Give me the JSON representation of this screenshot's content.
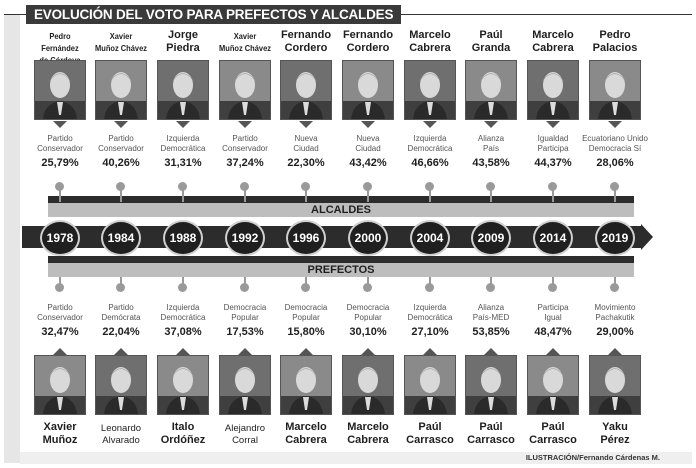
{
  "title": "EVOLUCIÓN DEL VOTO PARA PREFECTOS Y ALCALDES",
  "band_alcaldes": "ALCALDES",
  "band_prefectos": "PREFECTOS",
  "credit": "ILUSTRACIÓN/Fernando Cárdenas M.",
  "colors": {
    "dark": "#2c2c2c",
    "band": "#bdbdbd",
    "connector": "#9a9a9a",
    "title_bg": "#3a3a3a"
  },
  "years": [
    "1978",
    "1984",
    "1988",
    "1992",
    "1996",
    "2000",
    "2004",
    "2009",
    "2014",
    "2019"
  ],
  "alcaldes": [
    {
      "name_1": "Pedro Fernández",
      "name_2": "de Córdova",
      "party_1": "Partido",
      "party_2": "Conservador",
      "pct": "25,79%"
    },
    {
      "name_1": "Xavier",
      "name_2": "Muñoz Chávez",
      "party_1": "Partido",
      "party_2": "Conservador",
      "pct": "40,26%"
    },
    {
      "name_1": "Jorge",
      "name_2": "Piedra",
      "party_1": "Izquierda",
      "party_2": "Democrática",
      "pct": "31,31%"
    },
    {
      "name_1": "Xavier",
      "name_2": "Muñoz Chávez",
      "party_1": "Partido",
      "party_2": "Conservador",
      "pct": "37,24%"
    },
    {
      "name_1": "Fernando",
      "name_2": "Cordero",
      "party_1": "Nueva",
      "party_2": "Ciudad",
      "pct": "22,30%"
    },
    {
      "name_1": "Fernando",
      "name_2": "Cordero",
      "party_1": "Nueva",
      "party_2": "Ciudad",
      "pct": "43,42%"
    },
    {
      "name_1": "Marcelo",
      "name_2": "Cabrera",
      "party_1": "Izquierda",
      "party_2": "Democrática",
      "pct": "46,66%"
    },
    {
      "name_1": "Paúl",
      "name_2": "Granda",
      "party_1": "Alianza",
      "party_2": "País",
      "pct": "43,58%"
    },
    {
      "name_1": "Marcelo",
      "name_2": "Cabrera",
      "party_1": "Igualdad",
      "party_2": "Participa",
      "pct": "44,37%"
    },
    {
      "name_1": "Pedro",
      "name_2": "Palacios",
      "party_1": "Ecuatoriano Unido",
      "party_2": "Democracia Sí",
      "pct": "28,06%"
    }
  ],
  "prefectos": [
    {
      "name_1": "Xavier",
      "name_2": "Muñoz",
      "party_1": "Partido",
      "party_2": "Conservador",
      "pct": "32,47%"
    },
    {
      "name_1": "Leonardo",
      "name_2": "Alvarado",
      "party_1": "Partido",
      "party_2": "Demócrata",
      "pct": "22,04%"
    },
    {
      "name_1": "Italo",
      "name_2": "Ordóñez",
      "party_1": "Izquierda",
      "party_2": "Democrática",
      "pct": "37,08%"
    },
    {
      "name_1": "Alejandro",
      "name_2": "Corral",
      "party_1": "Democracia",
      "party_2": "Popular",
      "pct": "17,53%"
    },
    {
      "name_1": "Marcelo",
      "name_2": "Cabrera",
      "party_1": "Democracia",
      "party_2": "Popular",
      "pct": "15,80%"
    },
    {
      "name_1": "Marcelo",
      "name_2": "Cabrera",
      "party_1": "Democracia",
      "party_2": "Popular",
      "pct": "30,10%"
    },
    {
      "name_1": "Paúl",
      "name_2": "Carrasco",
      "party_1": "Izquierda",
      "party_2": "Democrática",
      "pct": "27,10%"
    },
    {
      "name_1": "Paúl",
      "name_2": "Carrasco",
      "party_1": "Alianza",
      "party_2": "País-MED",
      "pct": "53,85%"
    },
    {
      "name_1": "Paúl",
      "name_2": "Carrasco",
      "party_1": "Participa",
      "party_2": "Igual",
      "pct": "48,47%"
    },
    {
      "name_1": "Yaku",
      "name_2": "Pérez",
      "party_1": "Movimiento",
      "party_2": "Pachakutik",
      "pct": "29,00%"
    }
  ]
}
